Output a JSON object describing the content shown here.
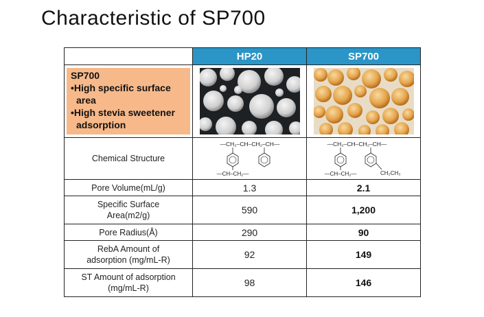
{
  "title": "Characteristic of SP700",
  "columns": {
    "col1": "HP20",
    "col2": "SP700"
  },
  "intro": {
    "heading": "SP700",
    "bullets": [
      "•High specific surface area",
      "•High stevia sweetener adsorption"
    ]
  },
  "structure": {
    "label": "Chemical Structure",
    "backbone": "—CH₂–CH–CH₂–CH—",
    "hp20_sub": "—CH–CH₂—",
    "sp700_sub": "—CH–CH₂—",
    "sp700_ethyl": "CH₂CH₃"
  },
  "rows": [
    {
      "label": "Pore Volume(mL/g)",
      "hp20": "1.3",
      "sp700": "2.1"
    },
    {
      "label": "Specific Surface Area(m2/g)",
      "hp20": "590",
      "sp700": "1,200"
    },
    {
      "label": "Pore Radius(Å)",
      "hp20": "290",
      "sp700": "90"
    },
    {
      "label": "RebA Amount of adsorption (mg/mL-R)",
      "hp20": "92",
      "sp700": "149"
    },
    {
      "label": "ST Amount of adsorption (mg/mL-R)",
      "hp20": "98",
      "sp700": "146"
    }
  ],
  "colors": {
    "header_bg": "#2a95c6",
    "intro_bg": "#f7b98a",
    "hp20_bead": "#d8d8d8",
    "sp700_bead": "#e5a44a"
  }
}
